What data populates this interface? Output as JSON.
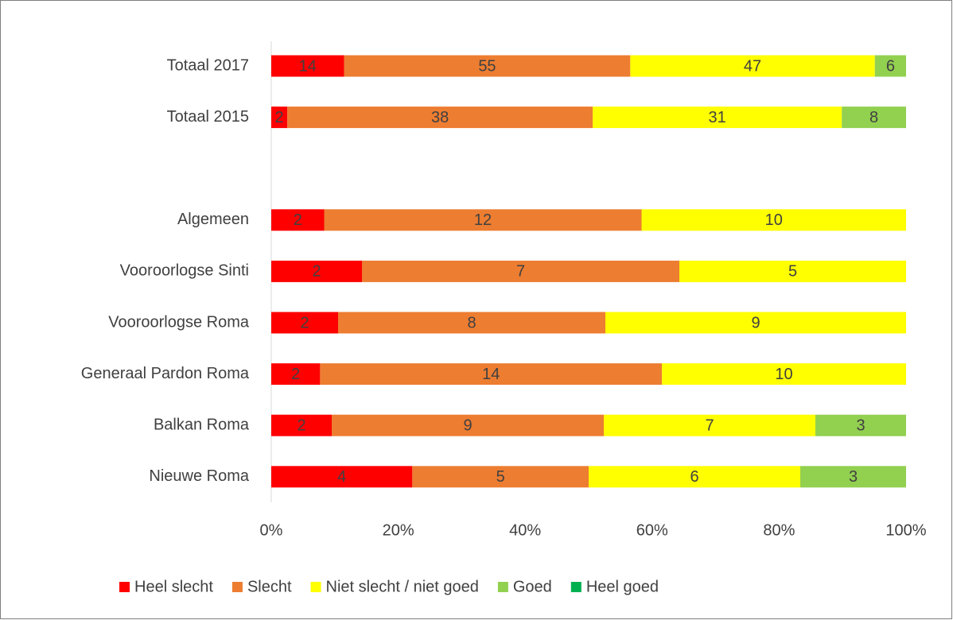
{
  "chart_data": {
    "type": "stacked_percent_barh",
    "categories": [
      "Totaal 2017",
      "Totaal 2015",
      null,
      "Algemeen",
      "Vooroorlogse Sinti",
      "Vooroorlogse Roma",
      "Generaal Pardon Roma",
      "Balkan Roma",
      "Nieuwe Roma"
    ],
    "series": [
      {
        "name": "Heel slecht",
        "color": "#ff0000",
        "values": [
          14,
          2,
          null,
          2,
          2,
          2,
          2,
          2,
          4
        ]
      },
      {
        "name": "Slecht",
        "color": "#ed7d31",
        "values": [
          55,
          38,
          null,
          12,
          7,
          8,
          14,
          9,
          5
        ]
      },
      {
        "name": "Niet slecht / niet goed",
        "color": "#ffff00",
        "values": [
          47,
          31,
          null,
          10,
          5,
          9,
          10,
          7,
          6
        ]
      },
      {
        "name": "Goed",
        "color": "#92d050",
        "values": [
          6,
          8,
          null,
          null,
          null,
          null,
          null,
          3,
          3
        ]
      },
      {
        "name": "Heel goed",
        "color": "#00b050",
        "values": [
          null,
          null,
          null,
          null,
          null,
          null,
          null,
          null,
          null
        ]
      }
    ],
    "xlim": [
      0,
      100
    ],
    "xticks": [
      {
        "value": 0,
        "label": "0%"
      },
      {
        "value": 20,
        "label": "20%"
      },
      {
        "value": 40,
        "label": "40%"
      },
      {
        "value": 60,
        "label": "60%"
      },
      {
        "value": 80,
        "label": "80%"
      },
      {
        "value": 100,
        "label": "100%"
      }
    ],
    "legend": "bottom"
  }
}
